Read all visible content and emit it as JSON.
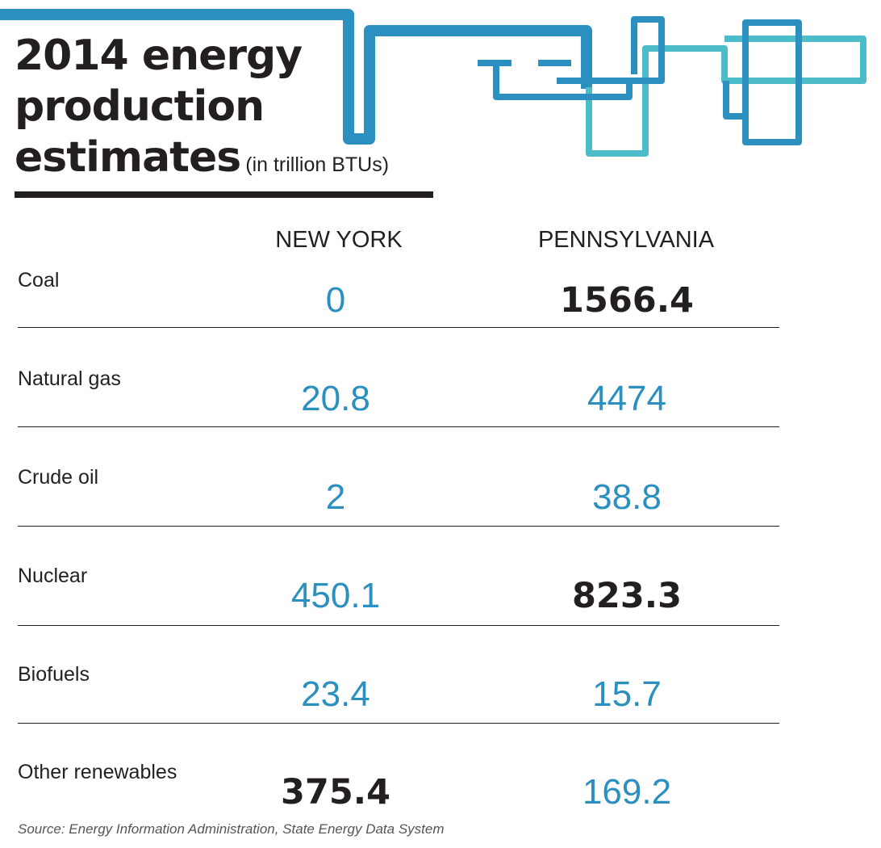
{
  "header": {
    "title_line1": "2014 energy",
    "title_line2": "production",
    "title_line3": "estimates",
    "subtitle": "(in trillion BTUs)"
  },
  "columns": [
    "NEW YORK",
    "PENNSYLVANIA"
  ],
  "rows": [
    {
      "label": "Coal",
      "ny": "0",
      "pa": "1566.4",
      "bold": "pa"
    },
    {
      "label": "Natural gas",
      "ny": "20.8",
      "pa": "4474",
      "bold": ""
    },
    {
      "label": "Crude oil",
      "ny": "2",
      "pa": "38.8",
      "bold": ""
    },
    {
      "label": "Nuclear",
      "ny": "450.1",
      "pa": "823.3",
      "bold": "pa"
    },
    {
      "label": "Biofuels",
      "ny": "23.4",
      "pa": "15.7",
      "bold": ""
    },
    {
      "label": "Other renewables",
      "ny": "375.4",
      "pa": "169.2",
      "bold": "ny"
    }
  ],
  "source": "Source: Energy Information Administration, State Energy Data System",
  "colors": {
    "value": "#2b8fc0",
    "pipe_dark": "#2b8fc0",
    "pipe_light": "#4bbcc8",
    "text": "#231f20"
  },
  "chart_data": {
    "type": "table",
    "title": "2014 energy production estimates",
    "subtitle": "(in trillion BTUs)",
    "categories": [
      "Coal",
      "Natural gas",
      "Crude oil",
      "Nuclear",
      "Biofuels",
      "Other renewables"
    ],
    "series": [
      {
        "name": "NEW YORK",
        "values": [
          0,
          20.8,
          2,
          450.1,
          23.4,
          375.4
        ]
      },
      {
        "name": "PENNSYLVANIA",
        "values": [
          1566.4,
          4474,
          38.8,
          823.3,
          15.7,
          169.2
        ]
      }
    ]
  }
}
